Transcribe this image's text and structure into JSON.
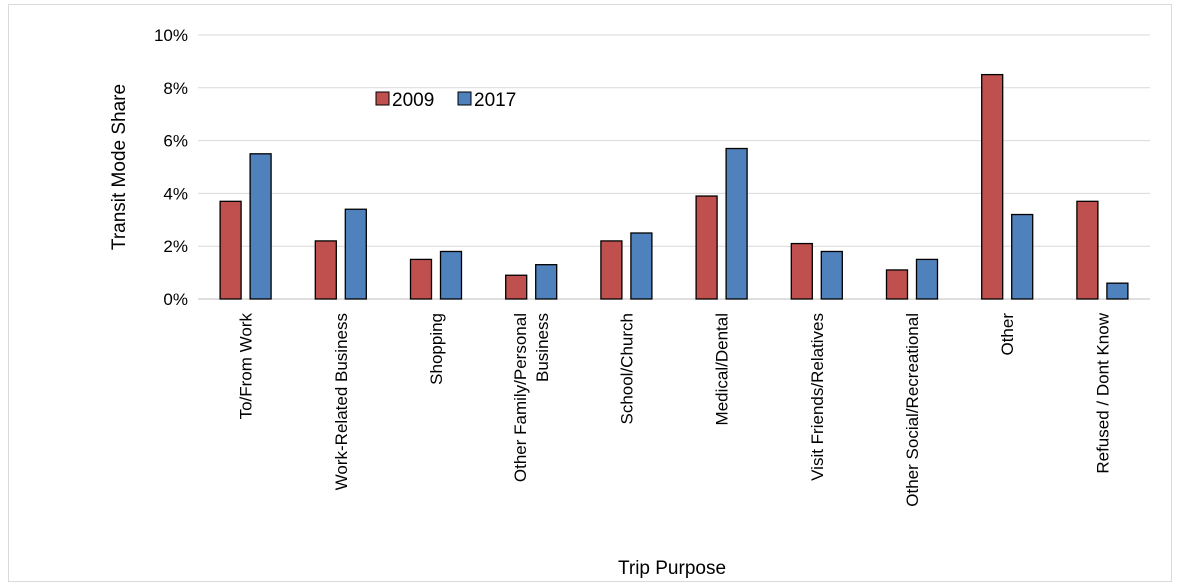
{
  "chart_data": {
    "type": "bar",
    "title": "",
    "xlabel": "Trip Purpose",
    "ylabel": "Transit Mode Share",
    "ylim": [
      0,
      10
    ],
    "yticks": [
      0,
      2,
      4,
      6,
      8,
      10
    ],
    "ytick_format": "{v}%",
    "grid": true,
    "legend_position": "top-center",
    "categories": [
      "To/From Work",
      "Work-Related Business",
      "Shopping",
      "Other Family/Personal|Business",
      "School/Church",
      "Medical/Dental",
      "Visit Friends/Relatives",
      "Other Social/Recreational",
      "Other",
      "Refused / Dont Know"
    ],
    "series": [
      {
        "name": "2009",
        "color": "#C0504D",
        "values": [
          3.7,
          2.2,
          1.5,
          0.9,
          2.2,
          3.9,
          2.1,
          1.1,
          8.5,
          3.7
        ]
      },
      {
        "name": "2017",
        "color": "#4F81BD",
        "values": [
          5.5,
          3.4,
          1.8,
          1.3,
          2.5,
          5.7,
          1.8,
          1.5,
          3.2,
          0.6
        ]
      }
    ]
  }
}
